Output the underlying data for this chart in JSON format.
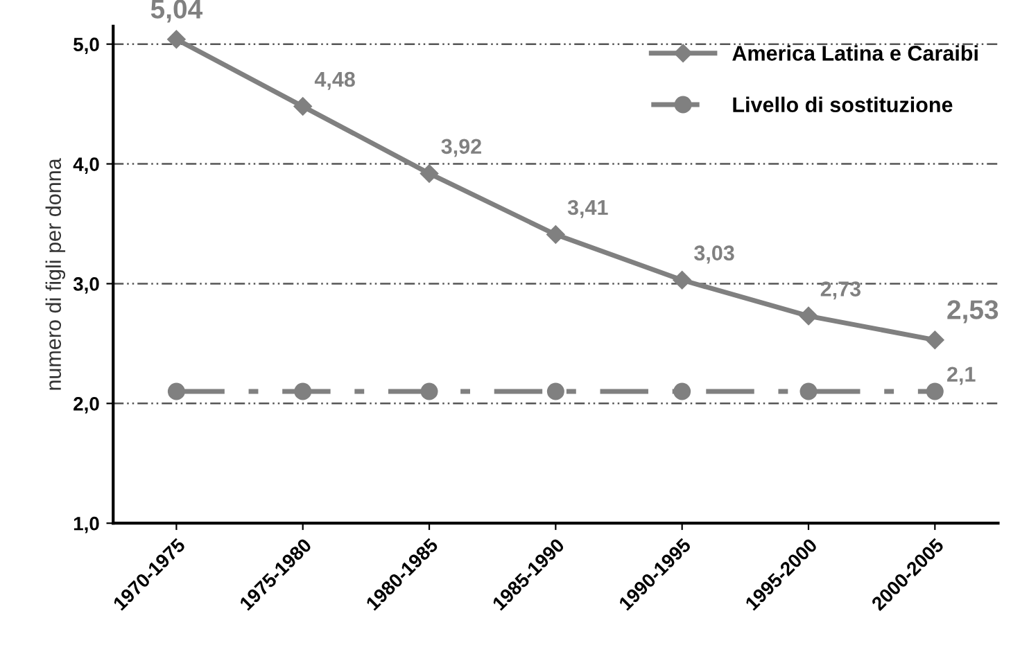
{
  "chart_data": {
    "type": "line",
    "ylabel": "numero di figli per donna",
    "categories": [
      "1970-1975",
      "1975-1980",
      "1980-1985",
      "1985-1990",
      "1990-1995",
      "1995-2000",
      "2000-2005"
    ],
    "series": [
      {
        "name": "America Latina e Caraibi",
        "color": "#808080",
        "marker": "diamond",
        "line_style": "solid",
        "values": [
          5.04,
          4.48,
          3.92,
          3.41,
          3.03,
          2.73,
          2.53
        ],
        "value_labels": [
          "5,04",
          "4,48",
          "3,92",
          "3,41",
          "3,03",
          "2,73",
          "2,53"
        ]
      },
      {
        "name": "Livello di sostituzione",
        "color": "#808080",
        "marker": "circle",
        "line_style": "dashdot",
        "values": [
          2.1,
          2.1,
          2.1,
          2.1,
          2.1,
          2.1,
          2.1
        ],
        "value_labels": [
          null,
          null,
          null,
          null,
          null,
          null,
          "2,1"
        ]
      }
    ],
    "ylim": [
      1,
      5.15
    ],
    "yticks": [
      {
        "value": 1,
        "label": "1,0"
      },
      {
        "value": 2,
        "label": "2,0"
      },
      {
        "value": 3,
        "label": "3,0"
      },
      {
        "value": 4,
        "label": "4,0"
      },
      {
        "value": 5,
        "label": "5,0"
      }
    ],
    "grid": "y",
    "legend": "top right"
  }
}
